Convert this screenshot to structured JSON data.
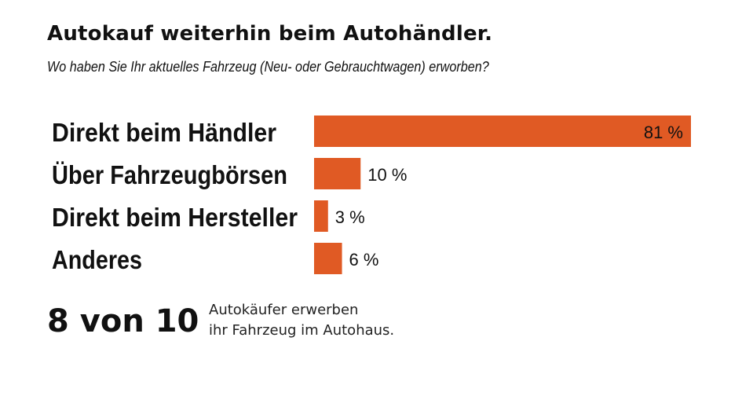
{
  "header": {
    "title": "Autokauf weiterhin beim Autohändler.",
    "subtitle": "Wo haben Sie Ihr aktuelles Fahrzeug (Neu- oder Gebrauchtwagen) erworben?"
  },
  "chart_data": {
    "type": "bar",
    "orientation": "horizontal",
    "title": "Autokauf weiterhin beim Autohändler.",
    "subtitle": "Wo haben Sie Ihr aktuelles Fahrzeug (Neu- oder Gebrauchtwagen) erworben?",
    "xlabel": "",
    "ylabel": "",
    "unit": "%",
    "xlim": [
      0,
      81
    ],
    "grid": false,
    "categories": [
      "Direkt beim Händler",
      "Über Fahrzeugbörsen",
      "Direkt beim Hersteller",
      "Anderes"
    ],
    "values": [
      81,
      10,
      3,
      6
    ],
    "value_labels": [
      "81 %",
      "10 %",
      "3 %",
      "6 %"
    ],
    "bar_color": "#e05a24"
  },
  "summary": {
    "big_stat": "8 von 10",
    "text_line1": "Autokäufer erwerben",
    "text_line2": "ihr Fahrzeug im Autohaus."
  }
}
